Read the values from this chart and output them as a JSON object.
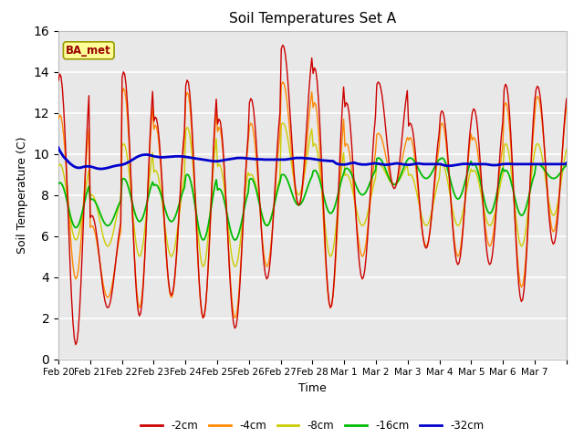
{
  "title": "Soil Temperatures Set A",
  "xlabel": "Time",
  "ylabel": "Soil Temperature (C)",
  "ylim": [
    0,
    16
  ],
  "yticks": [
    0,
    2,
    4,
    6,
    8,
    10,
    12,
    14,
    16
  ],
  "x_labels": [
    "Feb 20",
    "Feb 21",
    "Feb 22",
    "Feb 23",
    "Feb 24",
    "Feb 25",
    "Feb 26",
    "Feb 27",
    "Feb 28",
    "Mar 1",
    "Mar 2",
    "Mar 3",
    "Mar 4",
    "Mar 5",
    "Mar 6",
    "Mar 7"
  ],
  "colors": {
    "-2cm": "#cc0000",
    "-4cm": "#ff8800",
    "-8cm": "#cccc00",
    "-16cm": "#00bb00",
    "-32cm": "#0000cc"
  },
  "legend_label": "BA_met",
  "legend_box_color": "#ffff99",
  "legend_box_edge": "#999900",
  "bg_color": "#e8e8e8",
  "n_days": 16,
  "n_pts": 24,
  "series_2cm_peaks": [
    13.9,
    7.0,
    14.0,
    11.8,
    13.6,
    11.7,
    12.7,
    15.3,
    14.2,
    12.5,
    13.5,
    11.5,
    12.1,
    12.2,
    13.4,
    13.3
  ],
  "series_2cm_troughs": [
    0.7,
    2.5,
    2.1,
    3.1,
    2.0,
    1.5,
    3.9,
    7.5,
    2.5,
    3.9,
    8.3,
    5.4,
    4.6,
    4.6,
    2.8,
    5.6
  ],
  "series_4cm_peaks": [
    11.9,
    6.5,
    13.2,
    11.4,
    13.0,
    11.3,
    11.5,
    13.5,
    12.5,
    10.5,
    11.0,
    10.8,
    11.5,
    10.8,
    12.5,
    12.8
  ],
  "series_4cm_troughs": [
    3.9,
    3.0,
    2.5,
    3.0,
    2.0,
    2.0,
    4.5,
    7.5,
    2.5,
    5.0,
    8.5,
    5.5,
    5.0,
    5.5,
    3.5,
    6.2
  ],
  "series_8cm_peaks": [
    9.5,
    8.0,
    10.5,
    9.2,
    11.3,
    9.5,
    9.0,
    11.5,
    10.5,
    9.0,
    9.5,
    9.0,
    9.5,
    9.2,
    10.5,
    10.5
  ],
  "series_8cm_troughs": [
    5.8,
    5.5,
    5.0,
    5.0,
    4.5,
    4.5,
    6.5,
    8.0,
    5.0,
    6.5,
    8.5,
    6.5,
    6.5,
    6.5,
    5.5,
    7.0
  ],
  "series_16cm_peaks": [
    8.6,
    7.8,
    8.8,
    8.5,
    9.0,
    8.3,
    8.8,
    9.0,
    9.2,
    9.3,
    9.8,
    9.8,
    9.8,
    9.5,
    9.2,
    9.5
  ],
  "series_16cm_troughs": [
    6.4,
    6.5,
    6.7,
    6.7,
    5.8,
    5.8,
    6.5,
    7.5,
    7.1,
    8.0,
    8.5,
    8.8,
    7.8,
    7.1,
    7.0,
    8.8
  ],
  "series_32cm": [
    10.3,
    10.15,
    10.05,
    9.95,
    9.85,
    9.78,
    9.72,
    9.65,
    9.58,
    9.52,
    9.47,
    9.42,
    9.38,
    9.35,
    9.33,
    9.32,
    9.32,
    9.33,
    9.35,
    9.37,
    9.38,
    9.39,
    9.39,
    9.39,
    9.38,
    9.37,
    9.35,
    9.33,
    9.31,
    9.29,
    9.28,
    9.27,
    9.27,
    9.27,
    9.28,
    9.29,
    9.3,
    9.32,
    9.33,
    9.35,
    9.37,
    9.39,
    9.4,
    9.42,
    9.43,
    9.44,
    9.45,
    9.46,
    9.47,
    9.49,
    9.51,
    9.54,
    9.57,
    9.6,
    9.64,
    9.68,
    9.72,
    9.76,
    9.8,
    9.84,
    9.87,
    9.9,
    9.92,
    9.94,
    9.95,
    9.96,
    9.96,
    9.96,
    9.95,
    9.93,
    9.92,
    9.9,
    9.88,
    9.87,
    9.86,
    9.85,
    9.84,
    9.84,
    9.83,
    9.83,
    9.84,
    9.84,
    9.85,
    9.85,
    9.86,
    9.86,
    9.87,
    9.87,
    9.88,
    9.88,
    9.88,
    9.88,
    9.88,
    9.87,
    9.87,
    9.86,
    9.85,
    9.84,
    9.83,
    9.82,
    9.81,
    9.8,
    9.79,
    9.78,
    9.77,
    9.76,
    9.75,
    9.74,
    9.73,
    9.72,
    9.71,
    9.7,
    9.69,
    9.68,
    9.67,
    9.66,
    9.65,
    9.64,
    9.64,
    9.64,
    9.64,
    9.65,
    9.66,
    9.67,
    9.68,
    9.7,
    9.71,
    9.72,
    9.73,
    9.74,
    9.75,
    9.76,
    9.77,
    9.78,
    9.79,
    9.8,
    9.8,
    9.8,
    9.8,
    9.8,
    9.79,
    9.79,
    9.78,
    9.77,
    9.77,
    9.76,
    9.76,
    9.75,
    9.75,
    9.74,
    9.74,
    9.74,
    9.73,
    9.73,
    9.73,
    9.72,
    9.72,
    9.72,
    9.72,
    9.72,
    9.72,
    9.72,
    9.72,
    9.72,
    9.72,
    9.72,
    9.72,
    9.72,
    9.72,
    9.72,
    9.72,
    9.72,
    9.73,
    9.74,
    9.75,
    9.76,
    9.77,
    9.78,
    9.79,
    9.8,
    9.8,
    9.8,
    9.8,
    9.8,
    9.8,
    9.79,
    9.79,
    9.78,
    9.78,
    9.77,
    9.77,
    9.76,
    9.75,
    9.74,
    9.73,
    9.72,
    9.71,
    9.7,
    9.69,
    9.68,
    9.68,
    9.67,
    9.67,
    9.66,
    9.66,
    9.65,
    9.65,
    9.65,
    9.6,
    9.55,
    9.52,
    9.5,
    9.49,
    9.48,
    9.48,
    9.48,
    9.48,
    9.49,
    9.5,
    9.52,
    9.54,
    9.55,
    9.56,
    9.57,
    9.55,
    9.53,
    9.51,
    9.5,
    9.49,
    9.48,
    9.48,
    9.48,
    9.48,
    9.49,
    9.5,
    9.51,
    9.52,
    9.53,
    9.54,
    9.54,
    9.53,
    9.52,
    9.51,
    9.5,
    9.49,
    9.48,
    9.47,
    9.47,
    9.47,
    9.48,
    9.49,
    9.5,
    9.51,
    9.52,
    9.53,
    9.54,
    9.53,
    9.52,
    9.51,
    9.5,
    9.49,
    9.48,
    9.48,
    9.47,
    9.47,
    9.47,
    9.48,
    9.49,
    9.5,
    9.51,
    9.52,
    9.53,
    9.53,
    9.52,
    9.51,
    9.5,
    9.5,
    9.5,
    9.5,
    9.5,
    9.5,
    9.5,
    9.5,
    9.5,
    9.5,
    9.5,
    9.5,
    9.5,
    9.5,
    9.48,
    9.46,
    9.44,
    9.43,
    9.42,
    9.42,
    9.42,
    9.42,
    9.43,
    9.44,
    9.45,
    9.46,
    9.47,
    9.48,
    9.49,
    9.5,
    9.51,
    9.51,
    9.51,
    9.51,
    9.51,
    9.5,
    9.5,
    9.5,
    9.5,
    9.5,
    9.5,
    9.5,
    9.5,
    9.5,
    9.5,
    9.5,
    9.5,
    9.5,
    9.49,
    9.48,
    9.47,
    9.46,
    9.45,
    9.45,
    9.45,
    9.45,
    9.46,
    9.47,
    9.48,
    9.49,
    9.5,
    9.5,
    9.51,
    9.51,
    9.51,
    9.51,
    9.51,
    9.5,
    9.5,
    9.5,
    9.5,
    9.5,
    9.5,
    9.5,
    9.5,
    9.5,
    9.5,
    9.5,
    9.5,
    9.5,
    9.5,
    9.5,
    9.5,
    9.5,
    9.5,
    9.5,
    9.5,
    9.5,
    9.5,
    9.5,
    9.5,
    9.5,
    9.5,
    9.5,
    9.5,
    9.5,
    9.5,
    9.5,
    9.5,
    9.5,
    9.5,
    9.5,
    9.5,
    9.5,
    9.5,
    9.5,
    9.5,
    9.5,
    9.55
  ]
}
